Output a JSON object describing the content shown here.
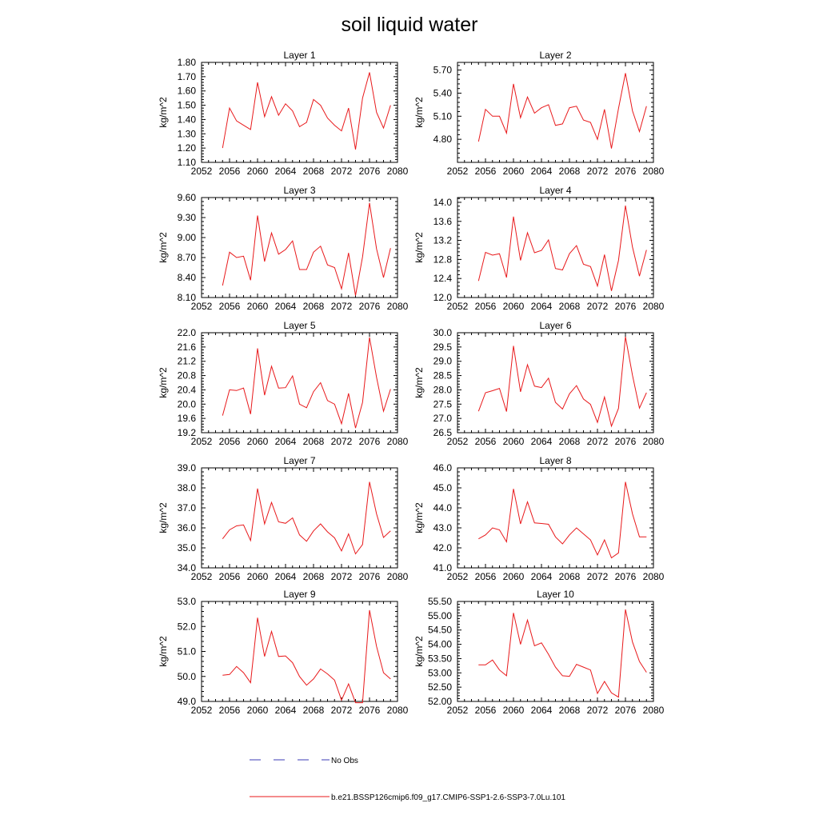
{
  "title": "soil liquid water",
  "legend": {
    "items": [
      {
        "label": "No Obs",
        "color": "#3b3bb5",
        "dash": true
      },
      {
        "label": "b.e21.BSSP126cmip6.f09_g17.CMIP6-SSP1-2.6-SSP3-7.0Lu.101",
        "color": "#e8191b",
        "dash": false
      }
    ]
  },
  "chart_data": [
    {
      "type": "line",
      "title": "Layer 1",
      "ylabel": "kg/m^2",
      "xlim": [
        2052,
        2080
      ],
      "xticks": [
        2052,
        2056,
        2060,
        2064,
        2068,
        2072,
        2076,
        2080
      ],
      "ylim": [
        1.1,
        1.8
      ],
      "yticks": [
        "1.10",
        "1.20",
        "1.30",
        "1.40",
        "1.50",
        "1.60",
        "1.70",
        "1.80"
      ],
      "x": [
        2055,
        2056,
        2057,
        2058,
        2059,
        2060,
        2061,
        2062,
        2063,
        2064,
        2065,
        2066,
        2067,
        2068,
        2069,
        2070,
        2071,
        2072,
        2073,
        2074,
        2075,
        2076,
        2077,
        2078,
        2079
      ],
      "series": [
        {
          "color": "#e8191b",
          "values": [
            1.2,
            1.48,
            1.39,
            1.36,
            1.33,
            1.66,
            1.42,
            1.56,
            1.43,
            1.51,
            1.46,
            1.35,
            1.38,
            1.54,
            1.5,
            1.41,
            1.36,
            1.32,
            1.48,
            1.19,
            1.55,
            1.73,
            1.45,
            1.34,
            1.5
          ]
        }
      ]
    },
    {
      "type": "line",
      "title": "Layer 2",
      "ylabel": "kg/m^2",
      "xlim": [
        2052,
        2080
      ],
      "xticks": [
        2052,
        2056,
        2060,
        2064,
        2068,
        2072,
        2076,
        2080
      ],
      "ylim": [
        4.5,
        5.8
      ],
      "yticks": [
        "4.80",
        "5.10",
        "5.40",
        "5.70"
      ],
      "x": [
        2055,
        2056,
        2057,
        2058,
        2059,
        2060,
        2061,
        2062,
        2063,
        2064,
        2065,
        2066,
        2067,
        2068,
        2069,
        2070,
        2071,
        2072,
        2073,
        2074,
        2075,
        2076,
        2077,
        2078,
        2079
      ],
      "series": [
        {
          "color": "#e8191b",
          "values": [
            4.77,
            5.19,
            5.1,
            5.1,
            4.88,
            5.52,
            5.08,
            5.35,
            5.14,
            5.21,
            5.25,
            4.98,
            5.0,
            5.21,
            5.23,
            5.05,
            5.02,
            4.8,
            5.19,
            4.68,
            5.2,
            5.66,
            5.17,
            4.9,
            5.23
          ]
        }
      ]
    },
    {
      "type": "line",
      "title": "Layer 3",
      "ylabel": "kg/m^2",
      "xlim": [
        2052,
        2080
      ],
      "xticks": [
        2052,
        2056,
        2060,
        2064,
        2068,
        2072,
        2076,
        2080
      ],
      "ylim": [
        8.1,
        9.6
      ],
      "yticks": [
        "8.10",
        "8.40",
        "8.70",
        "9.00",
        "9.30",
        "9.60"
      ],
      "x": [
        2055,
        2056,
        2057,
        2058,
        2059,
        2060,
        2061,
        2062,
        2063,
        2064,
        2065,
        2066,
        2067,
        2068,
        2069,
        2070,
        2071,
        2072,
        2073,
        2074,
        2075,
        2076,
        2077,
        2078,
        2079
      ],
      "series": [
        {
          "color": "#e8191b",
          "values": [
            8.28,
            8.78,
            8.7,
            8.72,
            8.36,
            9.33,
            8.64,
            9.07,
            8.75,
            8.82,
            8.95,
            8.52,
            8.52,
            8.78,
            8.87,
            8.59,
            8.55,
            8.23,
            8.77,
            8.13,
            8.71,
            9.52,
            8.83,
            8.4,
            8.84
          ]
        }
      ]
    },
    {
      "type": "line",
      "title": "Layer 4",
      "ylabel": "kg/m^2",
      "xlim": [
        2052,
        2080
      ],
      "xticks": [
        2052,
        2056,
        2060,
        2064,
        2068,
        2072,
        2076,
        2080
      ],
      "ylim": [
        12.0,
        14.1
      ],
      "yticks": [
        "12.0",
        "12.4",
        "12.8",
        "13.2",
        "13.6",
        "14.0"
      ],
      "x": [
        2055,
        2056,
        2057,
        2058,
        2059,
        2060,
        2061,
        2062,
        2063,
        2064,
        2065,
        2066,
        2067,
        2068,
        2069,
        2070,
        2071,
        2072,
        2073,
        2074,
        2075,
        2076,
        2077,
        2078,
        2079
      ],
      "series": [
        {
          "color": "#e8191b",
          "values": [
            12.35,
            12.95,
            12.89,
            12.92,
            12.42,
            13.7,
            12.78,
            13.36,
            12.94,
            12.99,
            13.21,
            12.61,
            12.58,
            12.92,
            13.09,
            12.7,
            12.65,
            12.24,
            12.9,
            12.14,
            12.78,
            13.93,
            13.06,
            12.45,
            13.0
          ]
        }
      ]
    },
    {
      "type": "line",
      "title": "Layer 5",
      "ylabel": "kg/m^2",
      "xlim": [
        2052,
        2080
      ],
      "xticks": [
        2052,
        2056,
        2060,
        2064,
        2068,
        2072,
        2076,
        2080
      ],
      "ylim": [
        19.2,
        22.0
      ],
      "yticks": [
        "19.2",
        "19.6",
        "20.0",
        "20.4",
        "20.8",
        "21.2",
        "21.6",
        "22.0"
      ],
      "x": [
        2055,
        2056,
        2057,
        2058,
        2059,
        2060,
        2061,
        2062,
        2063,
        2064,
        2065,
        2066,
        2067,
        2068,
        2069,
        2070,
        2071,
        2072,
        2073,
        2074,
        2075,
        2076,
        2077,
        2078,
        2079
      ],
      "series": [
        {
          "color": "#e8191b",
          "values": [
            19.68,
            20.4,
            20.38,
            20.45,
            19.72,
            21.56,
            20.25,
            21.06,
            20.45,
            20.46,
            20.79,
            20.0,
            19.9,
            20.35,
            20.6,
            20.1,
            20.0,
            19.45,
            20.3,
            19.33,
            20.05,
            21.87,
            20.75,
            19.8,
            20.42
          ]
        }
      ]
    },
    {
      "type": "line",
      "title": "Layer 6",
      "ylabel": "kg/m^2",
      "xlim": [
        2052,
        2080
      ],
      "xticks": [
        2052,
        2056,
        2060,
        2064,
        2068,
        2072,
        2076,
        2080
      ],
      "ylim": [
        26.5,
        30.0
      ],
      "yticks": [
        "26.5",
        "27.0",
        "27.5",
        "28.0",
        "28.5",
        "29.0",
        "29.5",
        "30.0"
      ],
      "x": [
        2055,
        2056,
        2057,
        2058,
        2059,
        2060,
        2061,
        2062,
        2063,
        2064,
        2065,
        2066,
        2067,
        2068,
        2069,
        2070,
        2071,
        2072,
        2073,
        2074,
        2075,
        2076,
        2077,
        2078,
        2079
      ],
      "series": [
        {
          "color": "#e8191b",
          "values": [
            27.25,
            27.9,
            27.97,
            28.05,
            27.24,
            29.54,
            27.93,
            28.88,
            28.13,
            28.08,
            28.41,
            27.56,
            27.33,
            27.86,
            28.15,
            27.68,
            27.49,
            26.86,
            27.75,
            26.73,
            27.35,
            29.86,
            28.51,
            27.36,
            27.9
          ]
        }
      ]
    },
    {
      "type": "line",
      "title": "Layer 7",
      "ylabel": "kg/m^2",
      "xlim": [
        2052,
        2080
      ],
      "xticks": [
        2052,
        2056,
        2060,
        2064,
        2068,
        2072,
        2076,
        2080
      ],
      "ylim": [
        34.0,
        39.0
      ],
      "yticks": [
        "34.0",
        "35.0",
        "36.0",
        "37.0",
        "38.0",
        "39.0"
      ],
      "x": [
        2055,
        2056,
        2057,
        2058,
        2059,
        2060,
        2061,
        2062,
        2063,
        2064,
        2065,
        2066,
        2067,
        2068,
        2069,
        2070,
        2071,
        2072,
        2073,
        2074,
        2075,
        2076,
        2077,
        2078,
        2079
      ],
      "series": [
        {
          "color": "#e8191b",
          "values": [
            35.45,
            35.9,
            36.1,
            36.15,
            35.37,
            37.97,
            36.2,
            37.27,
            36.3,
            36.23,
            36.5,
            35.65,
            35.33,
            35.85,
            36.2,
            35.8,
            35.5,
            34.85,
            35.7,
            34.7,
            35.17,
            38.3,
            36.7,
            35.52,
            35.85
          ]
        }
      ]
    },
    {
      "type": "line",
      "title": "Layer 8",
      "ylabel": "kg/m^2",
      "xlim": [
        2052,
        2080
      ],
      "xticks": [
        2052,
        2056,
        2060,
        2064,
        2068,
        2072,
        2076,
        2080
      ],
      "ylim": [
        41.0,
        46.0
      ],
      "yticks": [
        "41.0",
        "42.0",
        "43.0",
        "44.0",
        "45.0",
        "46.0"
      ],
      "x": [
        2055,
        2056,
        2057,
        2058,
        2059,
        2060,
        2061,
        2062,
        2063,
        2064,
        2065,
        2066,
        2067,
        2068,
        2069,
        2070,
        2071,
        2072,
        2073,
        2074,
        2075,
        2076,
        2077,
        2078,
        2079
      ],
      "series": [
        {
          "color": "#e8191b",
          "values": [
            42.45,
            42.65,
            43.0,
            42.9,
            42.3,
            44.95,
            43.2,
            44.3,
            43.25,
            43.22,
            43.18,
            42.55,
            42.2,
            42.65,
            43.0,
            42.7,
            42.4,
            41.65,
            42.4,
            41.5,
            41.75,
            45.3,
            43.7,
            42.55,
            42.55
          ]
        }
      ]
    },
    {
      "type": "line",
      "title": "Layer 9",
      "ylabel": "kg/m^2",
      "xlim": [
        2052,
        2080
      ],
      "xticks": [
        2052,
        2056,
        2060,
        2064,
        2068,
        2072,
        2076,
        2080
      ],
      "ylim": [
        49.0,
        53.0
      ],
      "yticks": [
        "49.0",
        "50.0",
        "51.0",
        "52.0",
        "53.0"
      ],
      "x": [
        2055,
        2056,
        2057,
        2058,
        2059,
        2060,
        2061,
        2062,
        2063,
        2064,
        2065,
        2066,
        2067,
        2068,
        2069,
        2070,
        2071,
        2072,
        2073,
        2074,
        2075,
        2076,
        2077,
        2078,
        2079
      ],
      "series": [
        {
          "color": "#e8191b",
          "values": [
            50.05,
            50.08,
            50.4,
            50.15,
            49.75,
            52.35,
            50.8,
            51.8,
            50.8,
            50.82,
            50.55,
            50.0,
            49.65,
            49.9,
            50.3,
            50.1,
            49.85,
            49.05,
            49.7,
            48.95,
            48.95,
            52.65,
            51.2,
            50.15,
            49.9
          ]
        }
      ]
    },
    {
      "type": "line",
      "title": "Layer 10",
      "ylabel": "kg/m^2",
      "xlim": [
        2052,
        2080
      ],
      "xticks": [
        2052,
        2056,
        2060,
        2064,
        2068,
        2072,
        2076,
        2080
      ],
      "ylim": [
        52.0,
        55.5
      ],
      "yticks": [
        "52.00",
        "52.50",
        "53.00",
        "53.50",
        "54.00",
        "54.50",
        "55.00",
        "55.50"
      ],
      "x": [
        2055,
        2056,
        2057,
        2058,
        2059,
        2060,
        2061,
        2062,
        2063,
        2064,
        2065,
        2066,
        2067,
        2068,
        2069,
        2070,
        2071,
        2072,
        2073,
        2074,
        2075,
        2076,
        2077,
        2078,
        2079
      ],
      "series": [
        {
          "color": "#e8191b",
          "values": [
            53.28,
            53.28,
            53.45,
            53.1,
            52.9,
            55.1,
            54.0,
            54.85,
            53.95,
            54.05,
            53.65,
            53.2,
            52.9,
            52.88,
            53.3,
            53.2,
            53.1,
            52.28,
            52.7,
            52.3,
            52.15,
            55.22,
            54.08,
            53.4,
            53.02
          ]
        }
      ]
    }
  ]
}
